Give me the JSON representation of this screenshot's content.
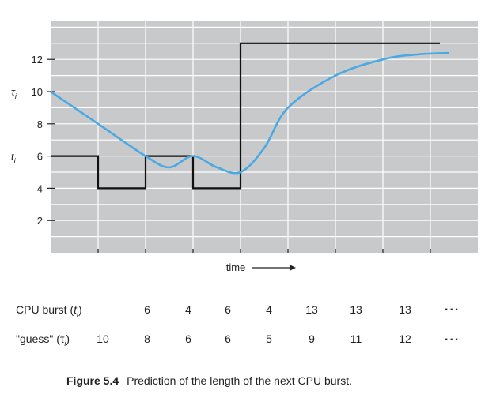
{
  "chart_data": {
    "type": "line",
    "xlabel": "time",
    "y_ticks": [
      2,
      4,
      6,
      8,
      10,
      12
    ],
    "ylim": [
      0,
      14.5
    ],
    "xlim": [
      0,
      8.5
    ],
    "grid": true,
    "y_axis_markers": [
      {
        "symbol": "τ",
        "subscript": "i",
        "at": 10
      },
      {
        "symbol": "t",
        "subscript": "i",
        "at": 6
      }
    ],
    "series": [
      {
        "kind": "step",
        "color": "#111111",
        "x": [
          0,
          1,
          1,
          2,
          2,
          3,
          3,
          4,
          4,
          8.2
        ],
        "y": [
          6,
          6,
          4,
          4,
          6,
          6,
          4,
          4,
          13,
          13
        ]
      },
      {
        "kind": "smooth",
        "color": "#4aa8e4",
        "x": [
          0,
          1,
          2,
          2.5,
          3,
          3.5,
          4,
          4.5,
          5,
          6,
          7,
          7.7,
          8.4
        ],
        "y": [
          10,
          8,
          6,
          5.3,
          6,
          5.3,
          5,
          6.5,
          9,
          11,
          12,
          12.3,
          12.4
        ]
      }
    ]
  },
  "table": {
    "rows": [
      {
        "label": "CPU burst (",
        "var": "t",
        "sub": "i",
        "close": ")",
        "values": [
          "",
          "6",
          "4",
          "6",
          "4",
          "13",
          "13",
          "13"
        ]
      },
      {
        "label": "\"guess\" (",
        "var": "τ",
        "sub": "i",
        "close": ")",
        "values": [
          "10",
          "8",
          "6",
          "6",
          "5",
          "9",
          "11",
          "12"
        ]
      }
    ],
    "ellipsis": "..."
  },
  "caption": {
    "figure": "Figure 5.4",
    "text": "Prediction of the length of the next CPU burst."
  },
  "colors": {
    "grid_bg": "#c8c9cb",
    "grid_line": "#ffffff",
    "step_line": "#111111",
    "guess_line": "#4aa8e4"
  }
}
